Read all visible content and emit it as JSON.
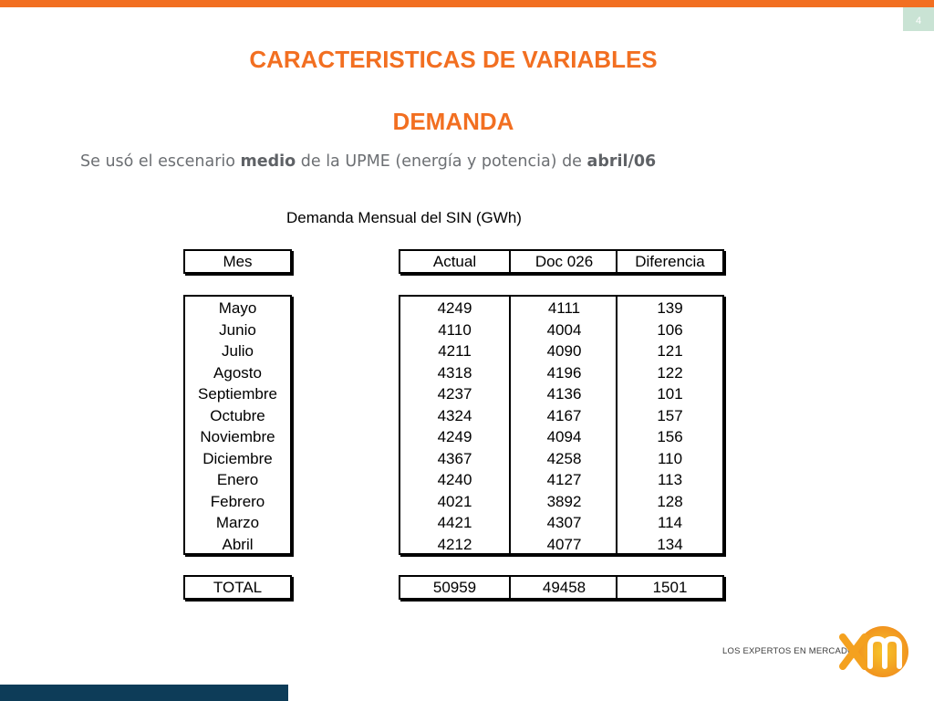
{
  "page_number": "4",
  "title": "CARACTERISTICAS DE VARIABLES",
  "section": "DEMANDA",
  "subtitle": {
    "part1": "Se usó el  escenario ",
    "bold1": "medio",
    "part2": " de la UPME (energía y potencia) de ",
    "bold2": "abril/06"
  },
  "table_caption": "Demanda Mensual del SIN (GWh)",
  "headers": {
    "mes": "Mes",
    "actual": "Actual",
    "doc": "Doc 026",
    "diferencia": "Diferencia"
  },
  "rows": [
    {
      "mes": "Mayo",
      "actual": "4249",
      "doc": "4111",
      "diferencia": "139"
    },
    {
      "mes": "Junio",
      "actual": "4110",
      "doc": "4004",
      "diferencia": "106"
    },
    {
      "mes": "Julio",
      "actual": "4211",
      "doc": "4090",
      "diferencia": "121"
    },
    {
      "mes": "Agosto",
      "actual": "4318",
      "doc": "4196",
      "diferencia": "122"
    },
    {
      "mes": "Septiembre",
      "actual": "4237",
      "doc": "4136",
      "diferencia": "101"
    },
    {
      "mes": "Octubre",
      "actual": "4324",
      "doc": "4167",
      "diferencia": "157"
    },
    {
      "mes": "Noviembre",
      "actual": "4249",
      "doc": "4094",
      "diferencia": "156"
    },
    {
      "mes": "Diciembre",
      "actual": "4367",
      "doc": "4258",
      "diferencia": "110"
    },
    {
      "mes": "Enero",
      "actual": "4240",
      "doc": "4127",
      "diferencia": "113"
    },
    {
      "mes": "Febrero",
      "actual": "4021",
      "doc": "3892",
      "diferencia": "128"
    },
    {
      "mes": "Marzo",
      "actual": "4421",
      "doc": "4307",
      "diferencia": "114"
    },
    {
      "mes": "Abril",
      "actual": "4212",
      "doc": "4077",
      "diferencia": "134"
    }
  ],
  "total": {
    "mes": "TOTAL",
    "actual": "50959",
    "doc": "49458",
    "diferencia": "1501"
  },
  "logo": {
    "tagline": "LOS EXPERTOS EN MERCADOS",
    "mark": "xm"
  },
  "colors": {
    "accent": "#f26f21",
    "navy": "#0d3c58",
    "pale_green": "#c9e3d4"
  }
}
